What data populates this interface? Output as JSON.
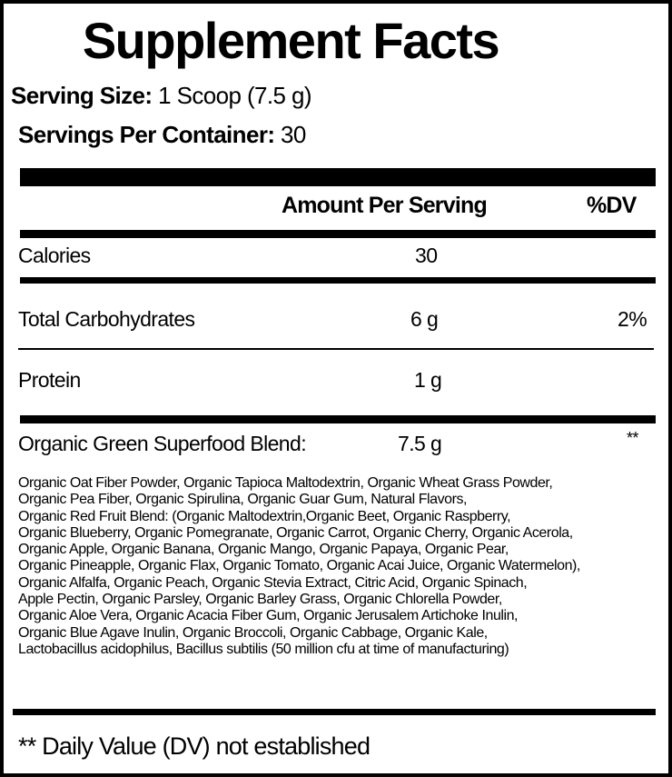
{
  "title": "Supplement Facts",
  "serving_size": {
    "label": "Serving Size:",
    "value": "1 Scoop (7.5 g)"
  },
  "servings_per_container": {
    "label": "Servings Per Container:",
    "value": "30"
  },
  "header": {
    "amount": "Amount Per Serving",
    "dv": "%DV"
  },
  "rows": [
    {
      "name": "Calories",
      "amount": "30",
      "dv": ""
    },
    {
      "name": "Total Carbohydrates",
      "amount": "6 g",
      "dv": "2%"
    },
    {
      "name": "Protein",
      "amount": "1 g",
      "dv": ""
    },
    {
      "name": "Organic Green Superfood Blend:",
      "amount": "7.5 g",
      "dv": "**"
    }
  ],
  "ingredients": [
    "Organic Oat Fiber Powder, Organic Tapioca Maltodextrin, Organic Wheat Grass Powder,",
    "Organic Pea Fiber, Organic Spirulina, Organic Guar Gum, Natural Flavors,",
    "Organic Red Fruit Blend: (Organic Maltodextrin,Organic Beet, Organic Raspberry,",
    "Organic Blueberry, Organic Pomegranate, Organic Carrot, Organic Cherry, Organic Acerola,",
    "Organic Apple, Organic Banana, Organic Mango, Organic Papaya, Organic Pear,",
    "Organic Pineapple, Organic Flax, Organic Tomato, Organic Acai Juice, Organic Watermelon),",
    "Organic Alfalfa, Organic Peach, Organic Stevia Extract, Citric Acid, Organic Spinach,",
    "Apple Pectin, Organic Parsley, Organic Barley Grass, Organic Chlorella Powder,",
    "Organic Aloe Vera, Organic Acacia Fiber Gum, Organic Jerusalem Artichoke Inulin,",
    "Organic Blue Agave Inulin, Organic Broccoli, Organic Cabbage, Organic Kale,",
    "Lactobacillus acidophilus, Bacillus subtilis (50 million cfu at time of manufacturing)"
  ],
  "footnote": "** Daily Value (DV) not established"
}
